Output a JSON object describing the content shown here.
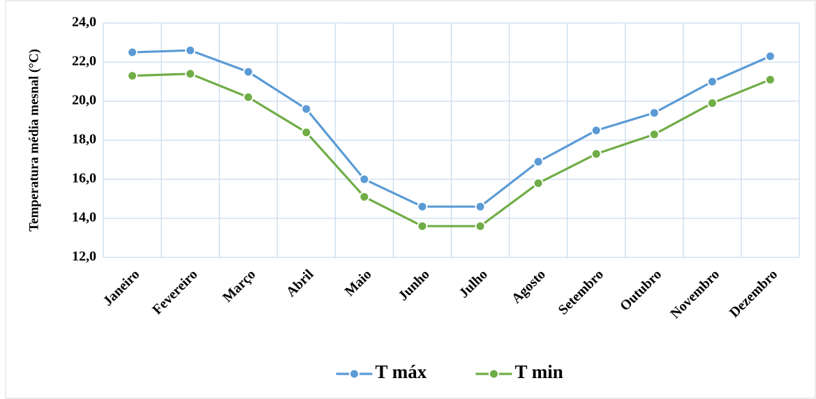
{
  "chart_data": {
    "type": "line",
    "y_label": "Temperatura média mesnal  (°C)",
    "categories": [
      "Janeiro",
      "Fevereiro",
      "Março",
      "Abril",
      "Maio",
      "Junho",
      "Julho",
      "Agosto",
      "Setembro",
      "Outubro",
      "Novembro",
      "Dezembro"
    ],
    "series": [
      {
        "name": "T máx",
        "color": "#5b9bd5",
        "values": [
          22.5,
          22.6,
          21.5,
          19.6,
          16.0,
          14.6,
          14.6,
          16.9,
          18.5,
          19.4,
          21.0,
          22.3
        ]
      },
      {
        "name": "T min",
        "color": "#70ad47",
        "values": [
          21.3,
          21.4,
          20.2,
          18.4,
          15.1,
          13.6,
          13.6,
          15.8,
          17.3,
          18.3,
          19.9,
          21.1
        ]
      }
    ],
    "ylim": [
      12,
      24
    ],
    "yticks": [
      {
        "value": 12,
        "label": "12,0"
      },
      {
        "value": 14,
        "label": "14,0"
      },
      {
        "value": 16,
        "label": "16,0"
      },
      {
        "value": 18,
        "label": "18,0"
      },
      {
        "value": 20,
        "label": "20,0"
      },
      {
        "value": 22,
        "label": "22,0"
      },
      {
        "value": 24,
        "label": "24,0"
      }
    ],
    "grid": true,
    "legend": "bottom"
  }
}
